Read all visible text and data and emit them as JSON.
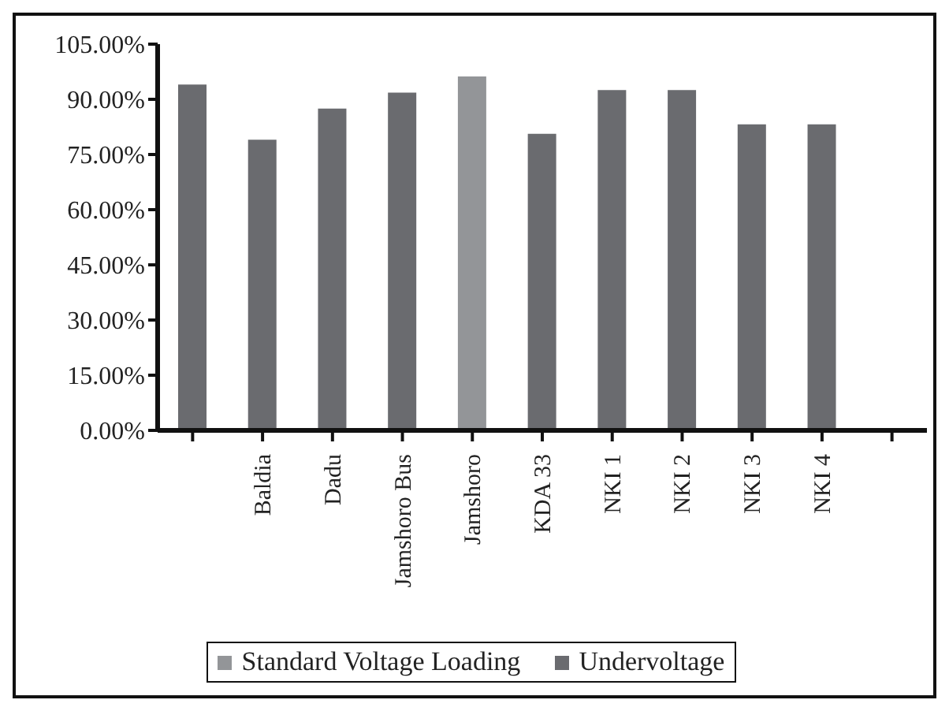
{
  "chart_data": {
    "type": "bar",
    "stacked": true,
    "categories": [
      null,
      "Baldia",
      "Dadu",
      "Jamshoro Bus",
      "Jamshoro",
      "KDA 33",
      "NKI 1",
      "NKI 2",
      "NKI 3",
      "NKI 4",
      null
    ],
    "series": [
      {
        "name": "Undervoltage",
        "color": "#6a6b6f",
        "values": [
          94,
          79,
          87.5,
          91.8,
          null,
          80.6,
          92.5,
          92.5,
          83.2,
          83.2,
          null
        ]
      },
      {
        "name": "Standard Voltage Loading",
        "color": "#939598",
        "values": [
          null,
          null,
          null,
          null,
          96.2,
          null,
          null,
          null,
          null,
          null,
          null
        ]
      }
    ],
    "ylim": [
      0,
      105
    ],
    "yticks": [
      {
        "value": 0,
        "label": "0.00%"
      },
      {
        "value": 15,
        "label": "15.00%"
      },
      {
        "value": 30,
        "label": "30.00%"
      },
      {
        "value": 45,
        "label": "45.00%"
      },
      {
        "value": 60,
        "label": "60.00%"
      },
      {
        "value": 75,
        "label": "75.00%"
      },
      {
        "value": 90,
        "label": "90.00%"
      },
      {
        "value": 105,
        "label": "105.00%"
      }
    ],
    "grid": false,
    "legend": "bottom"
  }
}
